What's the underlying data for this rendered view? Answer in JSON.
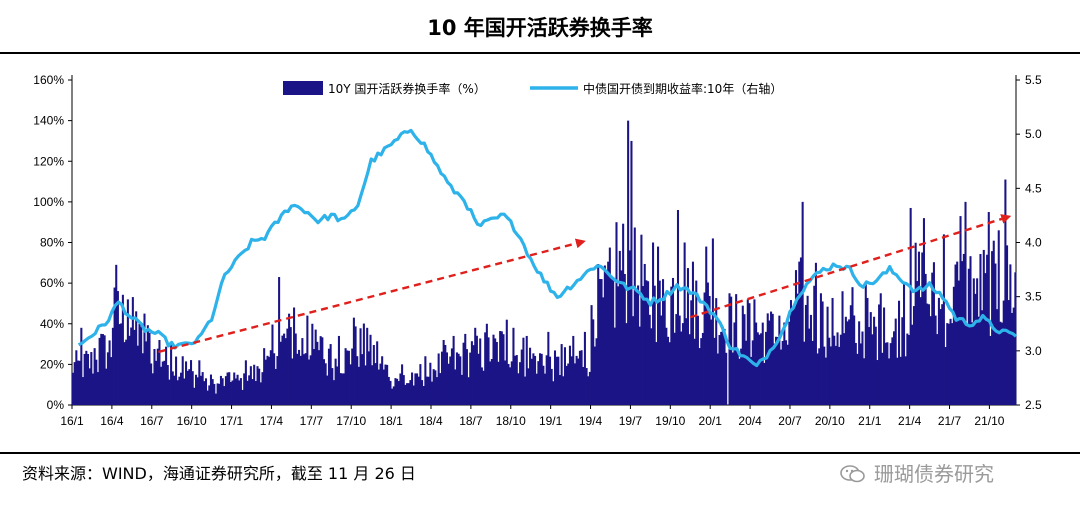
{
  "title": "10 年国开活跃券换手率",
  "footer": {
    "source": "资料来源：WIND，海通证券研究所，截至 11 月 26 日",
    "watermark": "珊瑚债券研究"
  },
  "colors": {
    "bar": "#1b1486",
    "line": "#2eb2ea",
    "arrow": "#e0201c"
  },
  "chart_data": {
    "type": "bar+line",
    "legend": {
      "position": "top",
      "entries": [
        "10Y 国开活跃券换手率（%）",
        "中债国开债到期收益率:10年（右轴）"
      ]
    },
    "x_ticks": [
      "16/1",
      "16/4",
      "16/7",
      "16/10",
      "17/1",
      "17/4",
      "17/7",
      "17/10",
      "18/1",
      "18/4",
      "18/7",
      "18/10",
      "19/1",
      "19/4",
      "19/7",
      "19/10",
      "20/1",
      "20/4",
      "20/7",
      "20/10",
      "21/1",
      "21/4",
      "21/7",
      "21/10"
    ],
    "y_left": {
      "min": 0,
      "max": 160,
      "step": 20,
      "tick_labels": [
        "0%",
        "20%",
        "40%",
        "60%",
        "80%",
        "100%",
        "120%",
        "140%",
        "160%"
      ]
    },
    "y_right": {
      "min": 2.5,
      "max": 5.5,
      "step": 0.5,
      "tick_labels": [
        "2.5",
        "3.0",
        "3.5",
        "4.0",
        "4.5",
        "5.0",
        "5.5"
      ]
    },
    "turnover_monthly_pct": {
      "months": [
        "16/1",
        "16/2",
        "16/3",
        "16/4",
        "16/5",
        "16/6",
        "16/7",
        "16/8",
        "16/9",
        "16/10",
        "16/11",
        "16/12",
        "17/1",
        "17/2",
        "17/3",
        "17/4",
        "17/5",
        "17/6",
        "17/7",
        "17/8",
        "17/9",
        "17/10",
        "17/11",
        "17/12",
        "18/1",
        "18/2",
        "18/3",
        "18/4",
        "18/5",
        "18/6",
        "18/7",
        "18/8",
        "18/9",
        "18/10",
        "18/11",
        "18/12",
        "19/1",
        "19/2",
        "19/3",
        "19/4",
        "19/5",
        "19/6",
        "19/7",
        "19/8",
        "19/9",
        "19/10",
        "19/11",
        "19/12",
        "20/1",
        "20/2",
        "20/3",
        "20/4",
        "20/5",
        "20/6",
        "20/7",
        "20/8",
        "20/9",
        "20/10",
        "20/11",
        "20/12",
        "21/1",
        "21/2",
        "21/3",
        "21/4",
        "21/5",
        "21/6",
        "21/7",
        "21/8",
        "21/9",
        "21/10",
        "21/11"
      ],
      "typical": [
        20,
        22,
        28,
        45,
        40,
        32,
        25,
        22,
        18,
        15,
        10,
        12,
        12,
        16,
        20,
        32,
        35,
        30,
        28,
        22,
        24,
        30,
        26,
        18,
        14,
        12,
        16,
        20,
        22,
        24,
        26,
        28,
        30,
        26,
        24,
        24,
        20,
        22,
        24,
        52,
        58,
        70,
        65,
        52,
        50,
        58,
        55,
        50,
        45,
        42,
        38,
        38,
        36,
        34,
        55,
        48,
        42,
        40,
        38,
        40,
        38,
        36,
        42,
        60,
        55,
        50,
        58,
        62,
        60,
        60,
        62
      ],
      "peaks": [
        38,
        28,
        35,
        69,
        52,
        45,
        32,
        30,
        24,
        22,
        15,
        16,
        16,
        22,
        28,
        63,
        48,
        44,
        40,
        30,
        34,
        43,
        38,
        24,
        20,
        16,
        24,
        32,
        34,
        35,
        38,
        40,
        42,
        38,
        34,
        36,
        30,
        34,
        36,
        62,
        90,
        140,
        130,
        80,
        78,
        96,
        80,
        78,
        82,
        55,
        52,
        52,
        46,
        44,
        100,
        70,
        55,
        56,
        58,
        60,
        55,
        48,
        60,
        97,
        92,
        84,
        93,
        100,
        95,
        86,
        111
      ],
      "dip_months": [
        "20/2"
      ]
    },
    "yield_10y_pct": {
      "x": [
        "16/1",
        "16/2",
        "16/3",
        "16/4",
        "16/5",
        "16/6",
        "16/7",
        "16/8",
        "16/9",
        "16/10",
        "16/11",
        "16/12",
        "17/1",
        "17/2",
        "17/3",
        "17/4",
        "17/5",
        "17/6",
        "17/7",
        "17/8",
        "17/9",
        "17/10",
        "17/11",
        "17/12",
        "18/1",
        "18/2",
        "18/3",
        "18/4",
        "18/5",
        "18/6",
        "18/7",
        "18/8",
        "18/9",
        "18/10",
        "18/11",
        "18/12",
        "19/1",
        "19/2",
        "19/3",
        "19/4",
        "19/5",
        "19/6",
        "19/7",
        "19/8",
        "19/9",
        "19/10",
        "19/11",
        "19/12",
        "20/1",
        "20/2",
        "20/3",
        "20/4",
        "20/5",
        "20/6",
        "20/7",
        "20/8",
        "20/9",
        "20/10",
        "20/11",
        "20/12",
        "21/1",
        "21/2",
        "21/3",
        "21/4",
        "21/5",
        "21/6",
        "21/7",
        "21/8",
        "21/9",
        "21/10",
        "21/11"
      ],
      "y": [
        3.05,
        3.15,
        3.25,
        3.45,
        3.3,
        3.2,
        3.15,
        3.05,
        3.05,
        3.1,
        3.3,
        3.7,
        3.85,
        4.0,
        4.05,
        4.2,
        4.35,
        4.3,
        4.2,
        4.25,
        4.2,
        4.35,
        4.75,
        4.85,
        4.95,
        5.05,
        4.9,
        4.7,
        4.5,
        4.4,
        4.15,
        4.2,
        4.25,
        4.1,
        3.85,
        3.65,
        3.5,
        3.6,
        3.7,
        3.8,
        3.7,
        3.6,
        3.55,
        3.45,
        3.5,
        3.6,
        3.55,
        3.45,
        3.3,
        3.05,
        2.95,
        2.85,
        3.0,
        3.2,
        3.5,
        3.65,
        3.75,
        3.8,
        3.75,
        3.6,
        3.65,
        3.75,
        3.65,
        3.55,
        3.6,
        3.5,
        3.3,
        3.25,
        3.3,
        3.2,
        3.15
      ]
    },
    "annotations": [
      {
        "type": "dashed-arrow",
        "from": [
          "16/7",
          2.99
        ],
        "to": [
          "19/3",
          4.01
        ]
      },
      {
        "type": "dashed-arrow",
        "from": [
          "19/11",
          3.31
        ],
        "to": [
          "21/11",
          4.24
        ]
      }
    ]
  }
}
